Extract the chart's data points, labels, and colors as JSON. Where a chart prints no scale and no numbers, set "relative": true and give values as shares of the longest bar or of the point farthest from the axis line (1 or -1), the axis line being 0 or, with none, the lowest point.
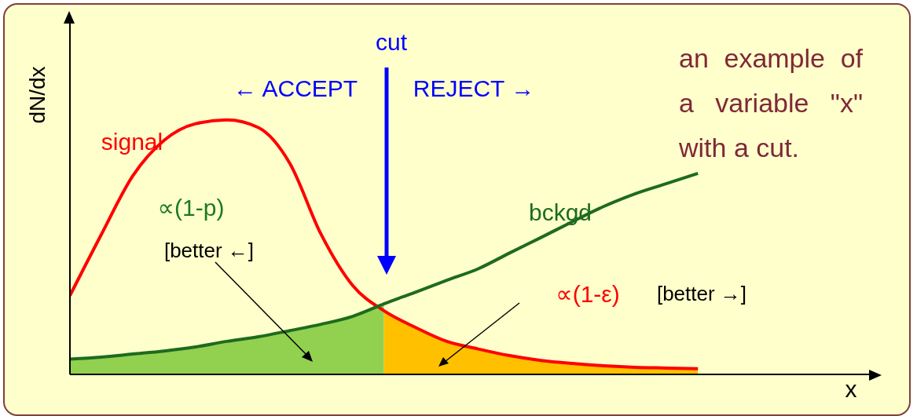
{
  "chart_data": {
    "type": "line",
    "relative": true,
    "ylabel": "dN/dx",
    "tick_labels": false,
    "marker": "none",
    "line_style": "solid",
    "categories": [
      null,
      null,
      null,
      null,
      null,
      null,
      null,
      null,
      null,
      null,
      null,
      null,
      null,
      null,
      null,
      null,
      null,
      null,
      null,
      null,
      null
    ],
    "series": [
      {
        "type": "area",
        "color": "#92d050",
        "values": [
          0.06,
          0.068,
          0.08,
          0.092,
          0.108,
          0.13,
          0.148,
          0.172,
          0.197,
          0.228,
          0.277,
          null,
          null,
          null,
          null,
          null,
          null,
          null,
          null,
          null,
          null
        ]
      },
      {
        "type": "area",
        "color": "#ffc000",
        "values": [
          null,
          null,
          null,
          null,
          null,
          null,
          null,
          null,
          null,
          null,
          0.25,
          0.185,
          0.13,
          0.1,
          0.074,
          0.055,
          0.043,
          0.034,
          0.028,
          0.025,
          0.022
        ]
      },
      {
        "name": "signal",
        "color": "#ff0000",
        "values": [
          0.31,
          0.55,
          0.78,
          0.92,
          0.985,
          1,
          0.97,
          0.83,
          0.55,
          0.35,
          0.25,
          0.185,
          0.13,
          0.1,
          0.074,
          0.055,
          0.043,
          0.034,
          0.028,
          0.025,
          0.022
        ]
      },
      {
        "name": "bckgd",
        "color": "#1e6b1e",
        "values": [
          0.06,
          0.068,
          0.08,
          0.092,
          0.108,
          0.13,
          0.148,
          0.172,
          0.197,
          0.228,
          0.277,
          0.323,
          0.37,
          0.415,
          0.477,
          0.538,
          0.6,
          0.66,
          0.71,
          0.75,
          0.79
        ]
      }
    ],
    "annotations": [
      "cut",
      "← ACCEPT",
      "REJECT →",
      "an example of a variable \"x\" with a cut.",
      "∝(1-p)",
      "[better ←]",
      "∝(1-ε)",
      "[better →]",
      "x"
    ]
  }
}
